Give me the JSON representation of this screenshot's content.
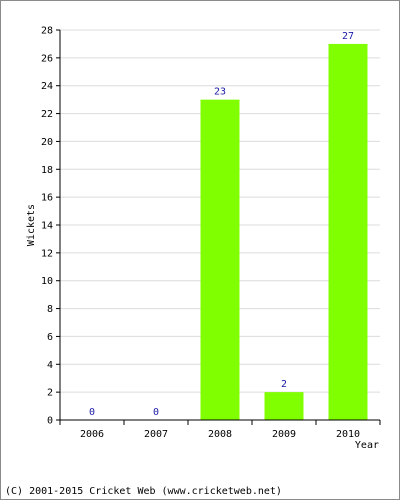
{
  "chart_data": {
    "type": "bar",
    "categories": [
      "2006",
      "2007",
      "2008",
      "2009",
      "2010"
    ],
    "values": [
      0,
      0,
      23,
      2,
      27
    ],
    "data_labels": [
      "0",
      "0",
      "23",
      "2",
      "27"
    ],
    "xlabel": "Year",
    "ylabel": "Wickets",
    "ylim": [
      0,
      28
    ],
    "yticks": [
      "0",
      "2",
      "4",
      "6",
      "8",
      "10",
      "12",
      "14",
      "16",
      "18",
      "20",
      "22",
      "24",
      "26",
      "28"
    ],
    "grid": true,
    "bar_color": "#80ff00",
    "label_color": "#1a1aa6"
  },
  "footer": {
    "copyright": "(C) 2001-2015 Cricket Web (www.cricketweb.net)"
  }
}
